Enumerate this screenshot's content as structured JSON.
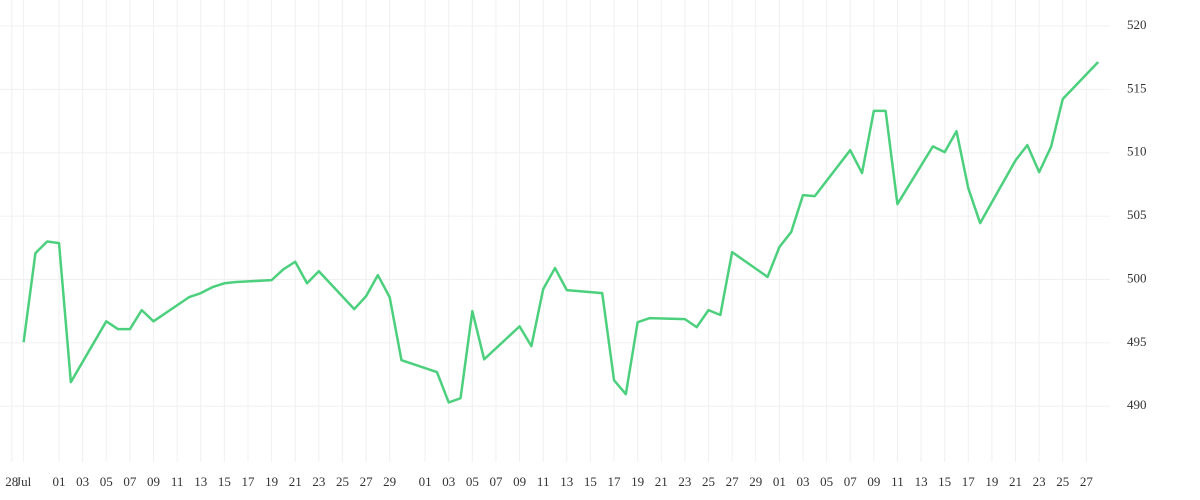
{
  "chart_data": {
    "type": "line",
    "color": "#4cd07d",
    "grid": true,
    "x": [
      "07-29",
      "07-30",
      "07-31",
      "08-01",
      "08-02",
      "08-05",
      "08-06",
      "08-07",
      "08-08",
      "08-09",
      "08-12",
      "08-13",
      "08-14",
      "08-15",
      "08-16",
      "08-19",
      "08-20",
      "08-21",
      "08-22",
      "08-23",
      "08-26",
      "08-27",
      "08-28",
      "08-29",
      "08-30",
      "09-02",
      "09-03",
      "09-04",
      "09-05",
      "09-06",
      "09-09",
      "09-10",
      "09-11",
      "09-12",
      "09-13",
      "09-16",
      "09-17",
      "09-18",
      "09-19",
      "09-20",
      "09-23",
      "09-24",
      "09-25",
      "09-26",
      "09-27",
      "09-30",
      "10-01",
      "10-02",
      "10-03",
      "10-04",
      "10-07",
      "10-08",
      "10-09",
      "10-10",
      "10-11",
      "10-14",
      "10-15",
      "10-16",
      "10-17",
      "10-18",
      "10-21",
      "10-22",
      "10-23",
      "10-24",
      "10-25",
      "10-28"
    ],
    "values": [
      495.05,
      502.08,
      503.0,
      502.87,
      491.9,
      496.7,
      496.08,
      496.08,
      497.58,
      496.7,
      498.6,
      498.92,
      499.4,
      499.7,
      499.8,
      499.95,
      500.8,
      501.4,
      499.7,
      500.65,
      497.66,
      498.68,
      500.34,
      498.6,
      493.63,
      492.7,
      490.3,
      490.63,
      497.5,
      493.7,
      496.3,
      494.74,
      499.24,
      500.9,
      499.16,
      498.92,
      492.05,
      490.95,
      496.63,
      496.95,
      496.87,
      496.24,
      497.58,
      497.2,
      502.16,
      500.2,
      502.55,
      503.74,
      506.66,
      506.58,
      510.2,
      508.4,
      513.3,
      513.3,
      505.95,
      510.5,
      510.05,
      511.7,
      507.2,
      504.45,
      509.4,
      510.6,
      508.47,
      510.45,
      514.24,
      517.16
    ],
    "xlim": [
      "07-27",
      "10-29"
    ],
    "xticks": [
      {
        "value": "07-28",
        "label": "28"
      },
      {
        "value": "07-29",
        "label": "Jul"
      },
      {
        "value": "08-01",
        "label": "01"
      },
      {
        "value": "08-03",
        "label": "03"
      },
      {
        "value": "08-05",
        "label": "05"
      },
      {
        "value": "08-07",
        "label": "07"
      },
      {
        "value": "08-09",
        "label": "09"
      },
      {
        "value": "08-11",
        "label": "11"
      },
      {
        "value": "08-13",
        "label": "13"
      },
      {
        "value": "08-15",
        "label": "15"
      },
      {
        "value": "08-17",
        "label": "17"
      },
      {
        "value": "08-19",
        "label": "19"
      },
      {
        "value": "08-21",
        "label": "21"
      },
      {
        "value": "08-23",
        "label": "23"
      },
      {
        "value": "08-25",
        "label": "25"
      },
      {
        "value": "08-27",
        "label": "27"
      },
      {
        "value": "08-29",
        "label": "29"
      },
      {
        "value": "09-01",
        "label": "01"
      },
      {
        "value": "09-03",
        "label": "03"
      },
      {
        "value": "09-05",
        "label": "05"
      },
      {
        "value": "09-07",
        "label": "07"
      },
      {
        "value": "09-09",
        "label": "09"
      },
      {
        "value": "09-11",
        "label": "11"
      },
      {
        "value": "09-13",
        "label": "13"
      },
      {
        "value": "09-15",
        "label": "15"
      },
      {
        "value": "09-17",
        "label": "17"
      },
      {
        "value": "09-19",
        "label": "19"
      },
      {
        "value": "09-21",
        "label": "21"
      },
      {
        "value": "09-23",
        "label": "23"
      },
      {
        "value": "09-25",
        "label": "25"
      },
      {
        "value": "09-27",
        "label": "27"
      },
      {
        "value": "09-29",
        "label": "29"
      },
      {
        "value": "10-01",
        "label": "01"
      },
      {
        "value": "10-03",
        "label": "03"
      },
      {
        "value": "10-05",
        "label": "05"
      },
      {
        "value": "10-07",
        "label": "07"
      },
      {
        "value": "10-09",
        "label": "09"
      },
      {
        "value": "10-11",
        "label": "11"
      },
      {
        "value": "10-13",
        "label": "13"
      },
      {
        "value": "10-15",
        "label": "15"
      },
      {
        "value": "10-17",
        "label": "17"
      },
      {
        "value": "10-19",
        "label": "19"
      },
      {
        "value": "10-21",
        "label": "21"
      },
      {
        "value": "10-23",
        "label": "23"
      },
      {
        "value": "10-25",
        "label": "25"
      },
      {
        "value": "10-27",
        "label": "27"
      }
    ],
    "ylim": [
      485.6,
      522.05
    ],
    "yticks": [
      490,
      495,
      500,
      505,
      510,
      515,
      520
    ]
  }
}
